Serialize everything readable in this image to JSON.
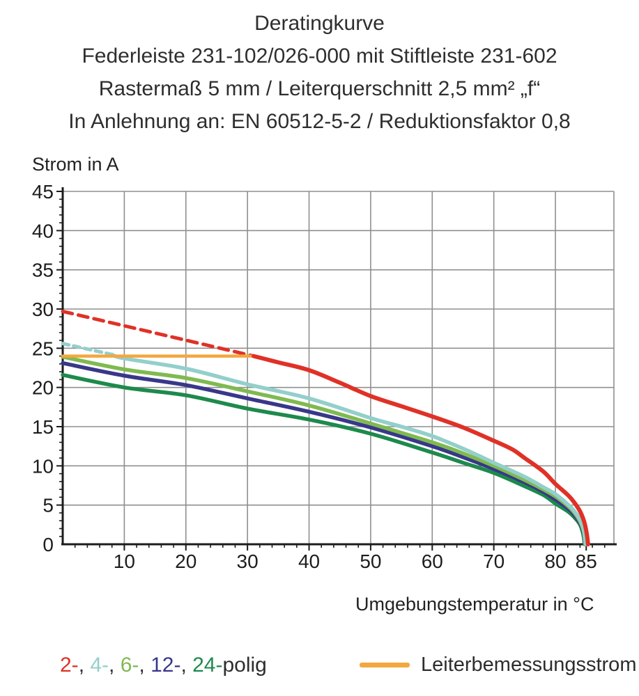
{
  "header": {
    "title_note": "title and subtitles live in chart_data"
  },
  "legend": {
    "items": [
      {
        "text": "2-",
        "color": "#e03127"
      },
      {
        "text": "4-",
        "color": "#93cfcb"
      },
      {
        "text": "6-",
        "color": "#7fba50"
      },
      {
        "text": "12-",
        "color": "#383789"
      },
      {
        "text": "24-",
        "color": "#1d8a4c"
      }
    ],
    "separator": ", ",
    "suffix": "polig",
    "rated_current_label": "Leiterbemessungsstrom",
    "rated_current_color": "#f3a73f"
  },
  "chart_data": {
    "type": "line",
    "title": "Deratingkurve",
    "subtitles": [
      "Federleiste 231-102/026-000 mit Stiftleiste 231-602",
      "Rastermaß 5 mm / Leiterquerschnitt 2,5 mm² „f“",
      "In Anlehnung an: EN 60512-5-2 / Reduktionsfaktor 0,8"
    ],
    "xlabel": "Umgebungstemperatur in °C",
    "ylabel": "Strom in A",
    "xlim": [
      0,
      89.5
    ],
    "ylim": [
      0,
      45
    ],
    "xticks": {
      "major": [
        10,
        20,
        30,
        40,
        50,
        60,
        70,
        80,
        85
      ],
      "minor_step": 2,
      "minor_max": 88
    },
    "yticks": {
      "major": [
        0,
        5,
        10,
        15,
        20,
        25,
        30,
        35,
        40,
        45
      ],
      "minor_step": 1
    },
    "grid": {
      "x": [
        10,
        20,
        30,
        40,
        50,
        60,
        70,
        80
      ],
      "y": [
        5,
        10,
        15,
        20,
        25,
        30,
        35,
        40
      ],
      "color": "#8f8f8f",
      "on": true
    },
    "legend_position": "bottom",
    "axis_color": "#1c1c1c",
    "series": [
      {
        "id": "24-polig",
        "name": "24-polig",
        "color": "#1d8a4c",
        "width": 5.5,
        "dash": null,
        "points": [
          [
            0,
            21.6
          ],
          [
            10,
            20.0
          ],
          [
            20,
            19.0
          ],
          [
            30,
            17.3
          ],
          [
            40,
            15.9
          ],
          [
            50,
            14.1
          ],
          [
            60,
            11.7
          ],
          [
            65,
            10.4
          ],
          [
            70,
            9.1
          ],
          [
            75,
            7.4
          ],
          [
            78,
            6.3
          ],
          [
            80,
            5.2
          ],
          [
            82,
            4.2
          ],
          [
            83,
            3.5
          ],
          [
            84,
            2.5
          ],
          [
            84.5,
            1.3
          ],
          [
            84.75,
            0
          ]
        ]
      },
      {
        "id": "12-polig",
        "name": "12-polig",
        "color": "#383789",
        "width": 5.5,
        "dash": null,
        "points": [
          [
            0,
            23.1
          ],
          [
            10,
            21.5
          ],
          [
            20,
            20.3
          ],
          [
            30,
            18.6
          ],
          [
            40,
            16.9
          ],
          [
            50,
            14.9
          ],
          [
            60,
            12.5
          ],
          [
            65,
            11.1
          ],
          [
            70,
            9.6
          ],
          [
            75,
            7.9
          ],
          [
            78,
            6.7
          ],
          [
            80,
            5.7
          ],
          [
            82,
            4.6
          ],
          [
            83,
            3.8
          ],
          [
            84,
            2.7
          ],
          [
            84.6,
            1.4
          ],
          [
            84.8,
            0
          ]
        ]
      },
      {
        "id": "6-polig",
        "name": "6-polig",
        "color": "#7fba50",
        "width": 5.5,
        "dash": null,
        "points": [
          [
            0,
            23.9
          ],
          [
            10,
            22.3
          ],
          [
            20,
            21.2
          ],
          [
            30,
            19.5
          ],
          [
            40,
            17.7
          ],
          [
            50,
            15.4
          ],
          [
            60,
            13.0
          ],
          [
            65,
            11.6
          ],
          [
            70,
            10.0
          ],
          [
            75,
            8.2
          ],
          [
            78,
            7.0
          ],
          [
            80,
            6.1
          ],
          [
            82,
            4.9
          ],
          [
            83,
            4.1
          ],
          [
            84,
            2.9
          ],
          [
            84.6,
            1.6
          ],
          [
            84.85,
            0
          ]
        ]
      },
      {
        "id": "4-polig-dashed",
        "name": "4-polig (oberhalb Leiterbemessungsstrom)",
        "color": "#93cfcb",
        "width": 5,
        "dash": [
          9,
          7
        ],
        "points": [
          [
            0,
            25.6
          ],
          [
            4,
            24.9
          ],
          [
            8,
            24.2
          ]
        ]
      },
      {
        "id": "4-polig",
        "name": "4-polig",
        "color": "#93cfcb",
        "width": 5.5,
        "dash": null,
        "points": [
          [
            8,
            24.2
          ],
          [
            10,
            23.7
          ],
          [
            20,
            22.4
          ],
          [
            30,
            20.4
          ],
          [
            40,
            18.6
          ],
          [
            50,
            16.1
          ],
          [
            55,
            15.0
          ],
          [
            60,
            13.8
          ],
          [
            65,
            12.2
          ],
          [
            70,
            10.4
          ],
          [
            75,
            8.6
          ],
          [
            78,
            7.3
          ],
          [
            80,
            6.4
          ],
          [
            82,
            5.1
          ],
          [
            83,
            4.3
          ],
          [
            84,
            3.1
          ],
          [
            84.6,
            1.8
          ],
          [
            84.9,
            0
          ]
        ]
      },
      {
        "id": "2-polig-dashed",
        "name": "2-polig (oberhalb Leiterbemessungsstrom)",
        "color": "#e03127",
        "width": 5,
        "dash": [
          14,
          9
        ],
        "points": [
          [
            0,
            29.7
          ],
          [
            31,
            24.0
          ]
        ]
      },
      {
        "id": "leiterbemessungsstrom",
        "name": "Leiterbemessungsstrom",
        "color": "#f3a73f",
        "width": 4.5,
        "dash": null,
        "points": [
          [
            0,
            24.0
          ],
          [
            31,
            24.0
          ]
        ]
      },
      {
        "id": "2-polig",
        "name": "2-polig",
        "color": "#e03127",
        "width": 6,
        "dash": null,
        "points": [
          [
            31,
            24.0
          ],
          [
            35,
            23.2
          ],
          [
            40,
            22.2
          ],
          [
            45,
            20.6
          ],
          [
            50,
            18.9
          ],
          [
            55,
            17.6
          ],
          [
            60,
            16.3
          ],
          [
            65,
            14.9
          ],
          [
            70,
            13.2
          ],
          [
            73,
            12.1
          ],
          [
            75,
            11.0
          ],
          [
            78,
            9.3
          ],
          [
            80,
            7.7
          ],
          [
            82,
            6.3
          ],
          [
            83,
            5.4
          ],
          [
            84,
            4.2
          ],
          [
            84.7,
            2.8
          ],
          [
            85.1,
            1.3
          ],
          [
            85.3,
            0
          ]
        ]
      }
    ]
  }
}
